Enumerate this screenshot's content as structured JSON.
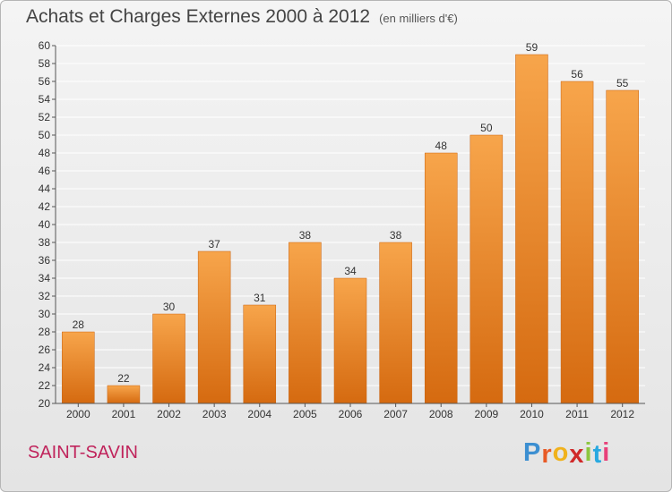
{
  "title": "Achats et Charges Externes 2000 à 2012",
  "subtitle": "(en milliers d'€)",
  "commune": "SAINT-SAVIN",
  "logo": {
    "letters": [
      "P",
      "r",
      "o",
      "x",
      "i",
      "t",
      "i"
    ],
    "colors": [
      "#3c8fd1",
      "#e85a26",
      "#f0b21c",
      "#d02a2a",
      "#8cc63f",
      "#29a9e0",
      "#e8417a"
    ]
  },
  "colors": {
    "bar_top": "#f7a54b",
    "bar_bottom": "#d56a10",
    "grid": "#ffffff",
    "axis": "#555555"
  },
  "chart_data": {
    "type": "bar",
    "categories": [
      "2000",
      "2001",
      "2002",
      "2003",
      "2004",
      "2005",
      "2006",
      "2007",
      "2008",
      "2009",
      "2010",
      "2011",
      "2012"
    ],
    "values": [
      28,
      22,
      30,
      37,
      31,
      38,
      34,
      38,
      48,
      50,
      59,
      56,
      55
    ],
    "ylim": [
      20,
      60
    ],
    "yticks": [
      20,
      22,
      24,
      26,
      28,
      30,
      32,
      34,
      36,
      38,
      40,
      42,
      44,
      46,
      48,
      50,
      52,
      54,
      56,
      58,
      60
    ],
    "grid": true,
    "data_labels": true
  }
}
